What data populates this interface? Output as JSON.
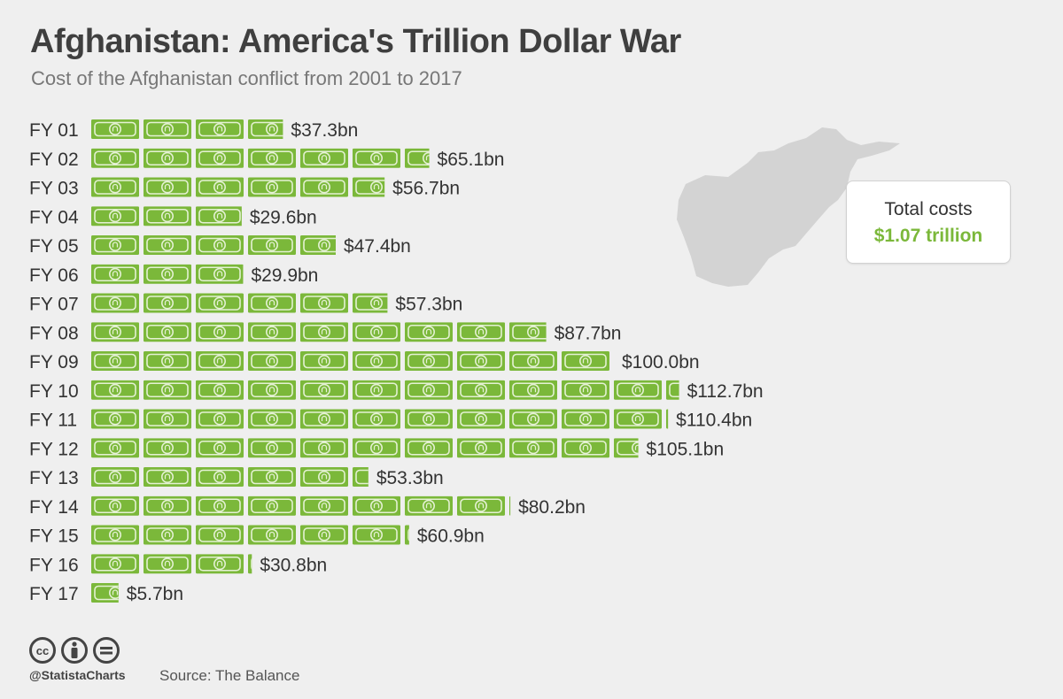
{
  "title": "Afghanistan: America's Trillion Dollar War",
  "subtitle": "Cost of the Afghanistan conflict from 2001 to 2017",
  "total": {
    "label": "Total costs",
    "value": "$1.07 trillion"
  },
  "footer": {
    "handle": "@StatistaCharts",
    "source": "Source: The Balance",
    "license_icons": [
      "cc",
      "by",
      "nd"
    ]
  },
  "colors": {
    "bill": "#7bb83a",
    "bill_dark": "#5f9a28",
    "map": "#d3d3d3",
    "accent": "#7bb83a"
  },
  "chart_data": {
    "type": "bar",
    "orientation": "horizontal",
    "unit_per_icon": 10,
    "categories": [
      "FY 01",
      "FY 02",
      "FY 03",
      "FY 04",
      "FY 05",
      "FY 06",
      "FY 07",
      "FY 08",
      "FY 09",
      "FY 10",
      "FY 11",
      "FY 12",
      "FY 13",
      "FY 14",
      "FY 15",
      "FY 16",
      "FY 17"
    ],
    "values": [
      37.3,
      65.1,
      56.7,
      29.6,
      47.4,
      29.9,
      57.3,
      87.7,
      100.0,
      112.7,
      110.4,
      105.1,
      53.3,
      80.2,
      60.9,
      30.8,
      5.7
    ],
    "labels": [
      "$37.3bn",
      "$65.1bn",
      "$56.7bn",
      "$29.6bn",
      "$47.4bn",
      "$29.9bn",
      "$57.3bn",
      "$87.7bn",
      "$100.0bn",
      "$112.7bn",
      "$110.4bn",
      "$105.1bn",
      "$53.3bn",
      "$80.2bn",
      "$60.9bn",
      "$30.8bn",
      "$5.7bn"
    ],
    "title": "Afghanistan: America's Trillion Dollar War",
    "xlabel": "",
    "ylabel": "",
    "grid": false
  }
}
